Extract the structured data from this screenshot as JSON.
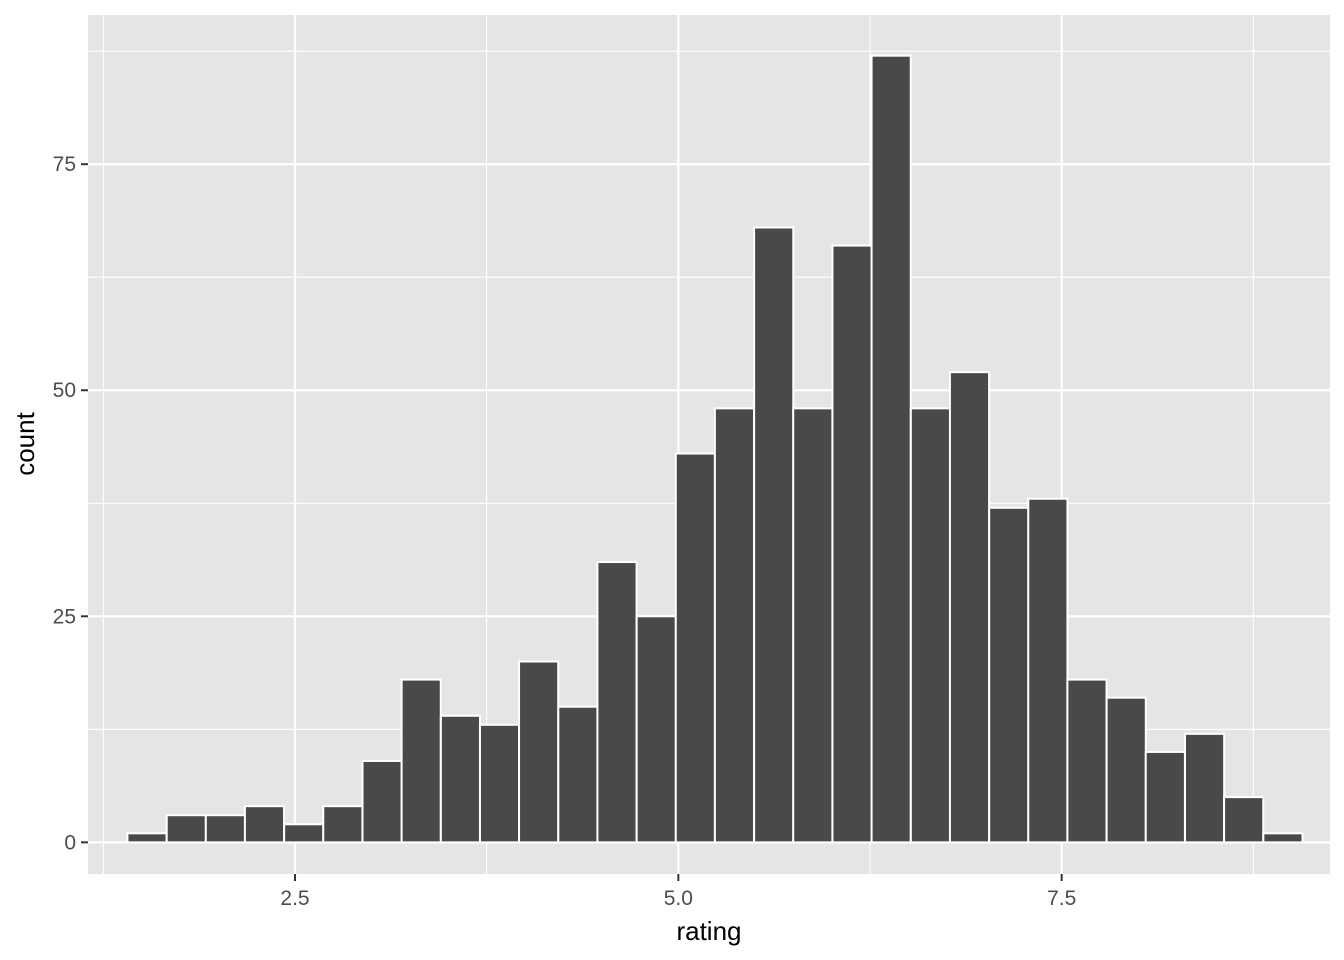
{
  "chart_data": {
    "type": "histogram",
    "title": "",
    "xlabel": "rating",
    "ylabel": "count",
    "xlim": [
      1.15,
      9.25
    ],
    "ylim": [
      -3.5,
      91.5
    ],
    "x_ticks": [
      2.5,
      5.0,
      7.5
    ],
    "x_tick_labels": [
      "2.5",
      "5.0",
      "7.5"
    ],
    "y_ticks": [
      0,
      25,
      50,
      75
    ],
    "y_tick_labels": [
      "0",
      "25",
      "50",
      "75"
    ],
    "x_minor_gridlines": [
      1.25,
      3.75,
      6.25,
      8.75
    ],
    "y_minor_gridlines": [
      12.5,
      37.5,
      62.5,
      87.5
    ],
    "grid": true,
    "legend": "none",
    "bin_width": 0.2554,
    "bin_centers": [
      1.535,
      1.791,
      2.046,
      2.301,
      2.557,
      2.812,
      3.068,
      3.323,
      3.579,
      3.834,
      4.089,
      4.345,
      4.6,
      4.856,
      5.111,
      5.366,
      5.622,
      5.877,
      6.133,
      6.388,
      6.644,
      6.899,
      7.155,
      7.41,
      7.665,
      7.921,
      8.176,
      8.432,
      8.687,
      8.943
    ],
    "counts": [
      1,
      3,
      3,
      4,
      2,
      4,
      9,
      18,
      14,
      13,
      20,
      15,
      31,
      25,
      43,
      48,
      68,
      48,
      66,
      87,
      48,
      52,
      37,
      38,
      18,
      16,
      10,
      12,
      5,
      1
    ],
    "colors": {
      "panel_background": "#e5e5e5",
      "grid_line": "#ffffff",
      "bar_fill": "#494949",
      "bar_outline": "#ffffff",
      "tick_mark": "#333333",
      "tick_label": "#4d4d4d",
      "axis_title": "#000000"
    }
  }
}
